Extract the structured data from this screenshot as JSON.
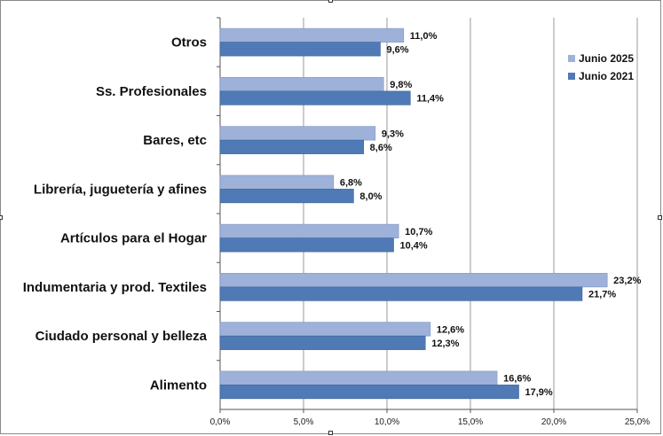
{
  "chart_data": {
    "type": "bar",
    "orientation": "horizontal",
    "categories": [
      "Otros",
      "Ss. Profesionales",
      "Bares, etc",
      "Librería, juguetería y afines",
      "Artículos para el Hogar",
      "Indumentaria y prod. Textiles",
      "Ciudado personal y belleza",
      "Alimento"
    ],
    "series": [
      {
        "name": "Junio 2025",
        "color": "#9eb1d9",
        "values": [
          11.0,
          9.8,
          9.3,
          6.8,
          10.7,
          23.2,
          12.6,
          16.6
        ],
        "labels": [
          "11,0%",
          "9,8%",
          "9,3%",
          "6,8%",
          "10,7%",
          "23,2%",
          "12,6%",
          "16,6%"
        ]
      },
      {
        "name": "Junio 2021",
        "color": "#4f7ab5",
        "values": [
          9.6,
          11.4,
          8.6,
          8.0,
          10.4,
          21.7,
          12.3,
          17.9
        ],
        "labels": [
          "9,6%",
          "11,4%",
          "8,6%",
          "8,0%",
          "10,4%",
          "21,7%",
          "12,3%",
          "17,9%"
        ]
      }
    ],
    "xlim": [
      0,
      25
    ],
    "xticks": [
      "0,0%",
      "5,0%",
      "10,0%",
      "15,0%",
      "20,0%",
      "25,0%"
    ],
    "grid": "vertical",
    "legend_position": "top-right",
    "xlabel": "",
    "ylabel": ""
  }
}
